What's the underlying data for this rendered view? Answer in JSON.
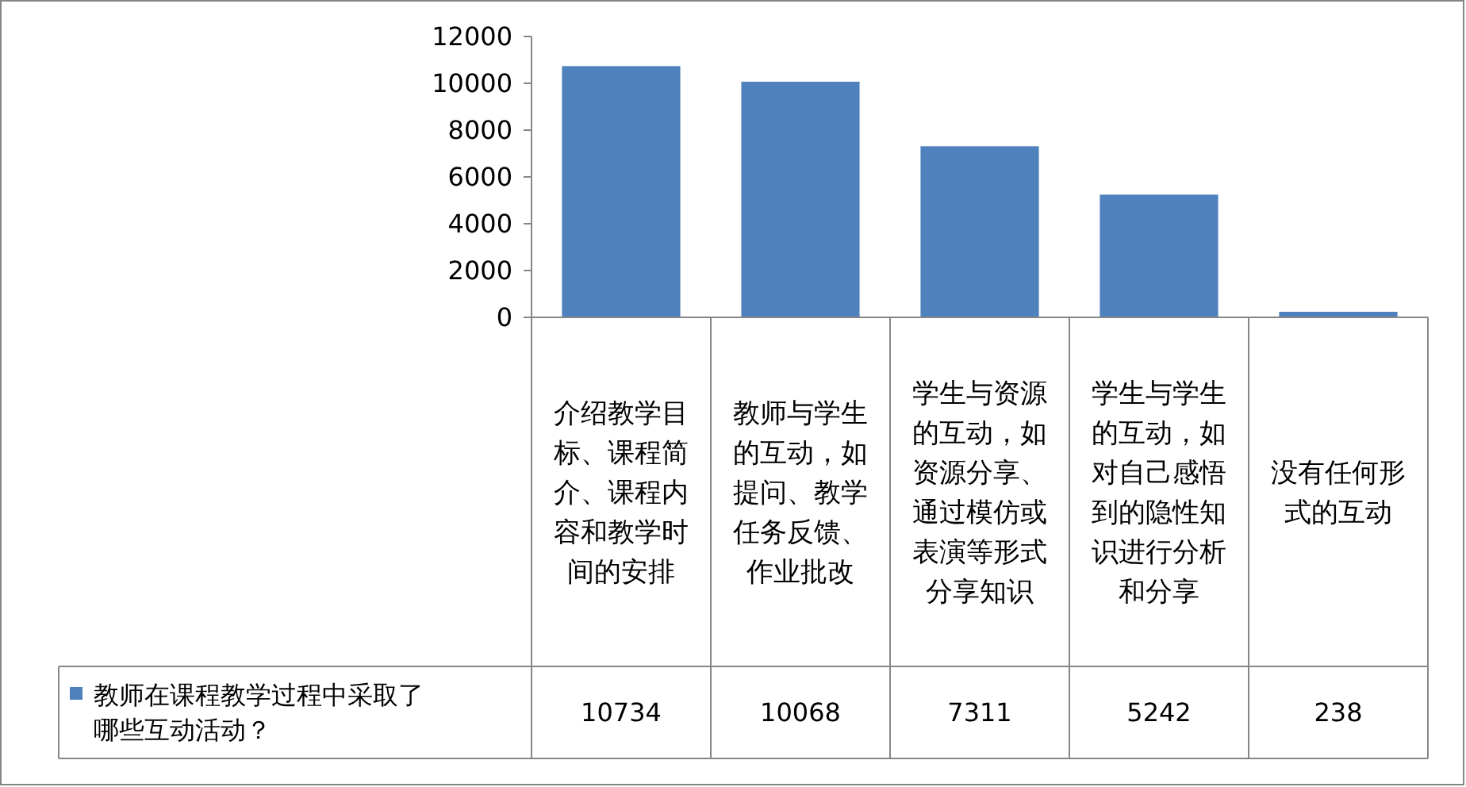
{
  "chart_data": {
    "type": "bar",
    "categories": [
      "介绍教学目标、课程简介、课程内容和教学时间的安排",
      "教师与学生的互动，如提问、教学任务反馈、作业批改",
      "学生与资源的互动，如资源分享、通过模仿或表演等形式分享知识",
      "学生与学生的互动，如对自己感悟到的隐性知识进行分析和分享",
      "没有任何形式的互动"
    ],
    "series": [
      {
        "name": "教师在课程教学过程中采取了哪些互动活动？",
        "color": "#4f81bd",
        "values": [
          10734,
          10068,
          7311,
          5242,
          238
        ]
      }
    ],
    "ylim": [
      0,
      12000
    ],
    "yticks": [
      0,
      2000,
      4000,
      6000,
      8000,
      10000,
      12000
    ],
    "grid": false,
    "legend": "bottom",
    "data_labels": true
  }
}
